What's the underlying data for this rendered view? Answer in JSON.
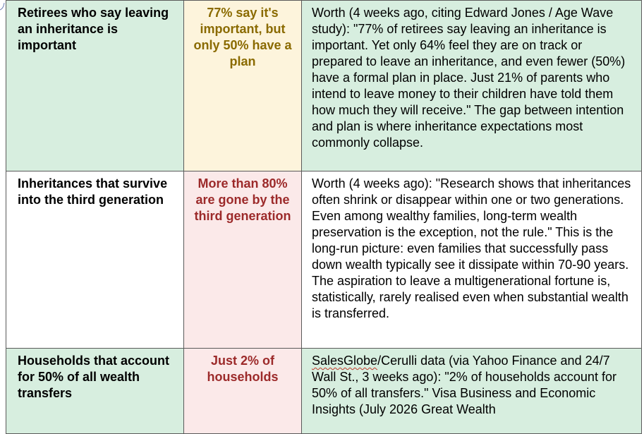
{
  "rows": [
    {
      "label": "Retirees who say leaving an inheritance is important",
      "stat": "77% say it's important, but only 50% have a plan",
      "desc": "Worth (4 weeks ago, citing Edward Jones / Age Wave study): \"77% of retirees say leaving an inheritance is important. Yet only 64% feel they are on track or prepared to leave an inheritance, and even fewer (50%) have a formal plan in place. Just 21% of parents who intend to leave money to their children have told them how much they will receive.\" The gap between intention and plan is where inheritance expectations most commonly collapse."
    },
    {
      "label": "Inheritances that survive into the third generation",
      "stat": "More than 80% are gone by the third generation",
      "desc": "Worth (4 weeks ago): \"Research shows that inheritances often shrink or disappear within one or two generations. Even among wealthy families, long-term wealth preservation is the exception, not the rule.\" This is the long-run picture: even families that successfully pass down wealth typically see it dissipate within 70-90 years. The aspiration to leave a multigenerational fortune is, statistically, rarely realised even when substantial wealth is transferred."
    },
    {
      "label": "Households that account for 50% of all wealth transfers",
      "stat": "Just 2% of households",
      "desc_lead": "SalesGlobe",
      "desc": "/Cerulli data (via Yahoo Finance and 24/7 Wall St., 3 weeks ago): \"2% of households account for 50% of all transfers.\" Visa Business and Economic Insights (July 2026 Great Wealth"
    }
  ],
  "colors": {
    "green_cell": "#d7eedf",
    "amber_cell": "#fdf4dc",
    "amber_text": "#8a6a00",
    "pink_cell": "#fbe9e9",
    "pink_text": "#9c2a2a",
    "border": "#5a5a5a"
  }
}
